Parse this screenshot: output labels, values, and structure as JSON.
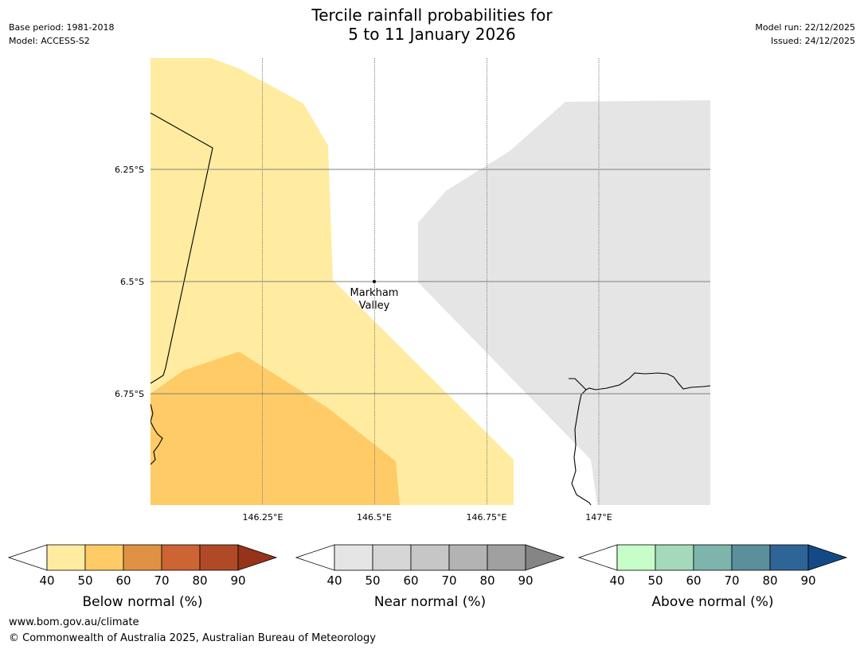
{
  "title": {
    "line1": "Tercile rainfall probabilities for",
    "line2": "5 to 11 January 2026"
  },
  "meta_left": {
    "base_period": "Base period: 1981-2018",
    "model": "Model: ACCESS-S2"
  },
  "meta_right": {
    "model_run": "Model run: 22/12/2025",
    "issued": "Issued: 24/12/2025"
  },
  "map": {
    "lat_labels": [
      "6.25°S",
      "6.5°S",
      "6.75°S"
    ],
    "lon_labels": [
      "146.25°E",
      "146.5°E",
      "146.75°E",
      "147°E"
    ],
    "place": {
      "name_line1": "Markham",
      "name_line2": "Valley",
      "lat": -6.5,
      "lon": 146.5
    },
    "extent": {
      "lon_min": 146.0,
      "lon_max": 147.25,
      "lat_min": -7.0,
      "lat_max": -6.0
    },
    "region_colors": {
      "below_40_50": "#ffeca0",
      "below_50_60": "#ffcb66",
      "near_40_50": "#e5e5e5",
      "coastline": "#000000",
      "gridline": "#7f7f7f"
    }
  },
  "colorbars": [
    {
      "label": "Below normal (%)",
      "ticks": [
        "40",
        "50",
        "60",
        "70",
        "80",
        "90"
      ],
      "colors": [
        "#ffeca0",
        "#ffcb66",
        "#e09244",
        "#cc6433",
        "#b04a26",
        "#96341b"
      ]
    },
    {
      "label": "Near normal (%)",
      "ticks": [
        "40",
        "50",
        "60",
        "70",
        "80",
        "90"
      ],
      "colors": [
        "#e5e5e5",
        "#d6d6d6",
        "#c6c6c6",
        "#b3b3b3",
        "#a0a0a0",
        "#858585"
      ]
    },
    {
      "label": "Above normal (%)",
      "ticks": [
        "40",
        "50",
        "60",
        "70",
        "80",
        "90"
      ],
      "colors": [
        "#c6fdc8",
        "#a4d9bb",
        "#7db5ad",
        "#5a8f9c",
        "#2f6497",
        "#134a86"
      ]
    }
  ],
  "footer": {
    "url": "www.bom.gov.au/climate",
    "copyright": "© Commonwealth of Australia 2025, Australian Bureau of Meteorology"
  }
}
